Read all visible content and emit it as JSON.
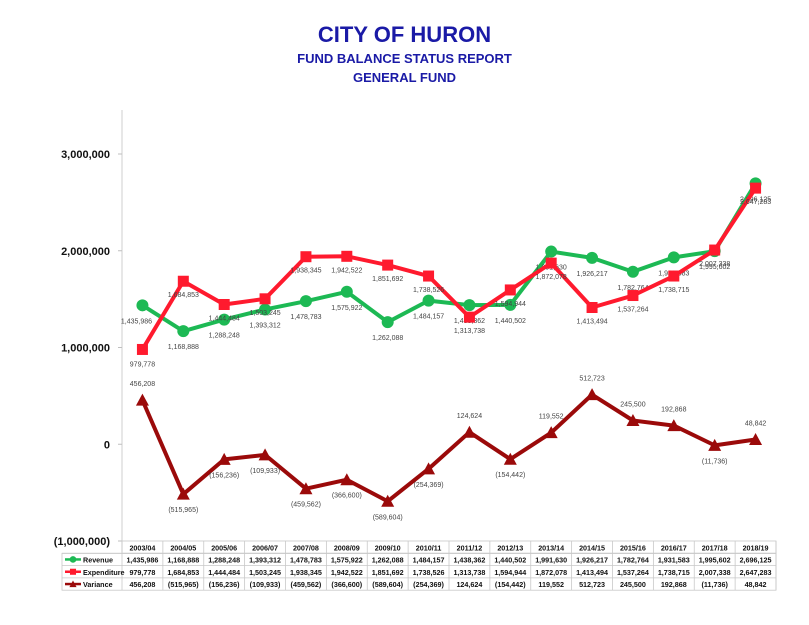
{
  "header": {
    "title": "CITY OF HURON",
    "subtitle": "FUND BALANCE STATUS REPORT",
    "subtitle2": "GENERAL FUND"
  },
  "chart_data": {
    "type": "line",
    "categories": [
      "2003/04",
      "2004/05",
      "2005/06",
      "2006/07",
      "2007/08",
      "2008/09",
      "2009/10",
      "2010/11",
      "2011/12",
      "2012/13",
      "2013/14",
      "2014/15",
      "2015/16",
      "2016/17",
      "2017/18",
      "2018/19"
    ],
    "ylim": [
      -1000000,
      3000000
    ],
    "yticks": [
      -1000000,
      0,
      1000000,
      2000000,
      3000000
    ],
    "ytick_labels": [
      "(1,000,000)",
      "0",
      "1,000,000",
      "2,000,000",
      "3,000,000"
    ],
    "grid": false,
    "legend": "bottom data table",
    "series": [
      {
        "name": "Revenue",
        "color": "#1db954",
        "marker": "circle",
        "values": [
          1435986,
          1168888,
          1288248,
          1393312,
          1478783,
          1575922,
          1262088,
          1484157,
          1438362,
          1440502,
          1991630,
          1926217,
          1782764,
          1931583,
          1995602,
          2696125
        ],
        "labels": [
          "1,435,986",
          "1,168,888",
          "1,288,248",
          "1,393,312",
          "1,478,783",
          "1,575,922",
          "1,262,088",
          "1,484,157",
          "1,438,362",
          "1,440,502",
          "1,991,630",
          "1,926,217",
          "1,782,764",
          "1,931,583",
          "1,995,602",
          "2,696,125"
        ],
        "table_labels": [
          "1,435,986",
          "1,168,888",
          "1,288,248",
          "1,393,312",
          "1,478,783",
          "1,575,922",
          "1,262,088",
          "1,484,157",
          "1,438,362",
          "1,440,502",
          "1,991,630",
          "1,926,217",
          "1,782,764",
          "1,931,583",
          "1,995,602",
          "2,696,125"
        ]
      },
      {
        "name": "Expenditure",
        "color": "#ff1a2e",
        "marker": "square",
        "values": [
          979778,
          1684853,
          1444484,
          1503245,
          1938345,
          1942522,
          1851692,
          1738526,
          1313738,
          1594944,
          1872078,
          1413494,
          1537264,
          1738715,
          2007338,
          2647283
        ],
        "labels": [
          "979,778",
          "1,684,853",
          "1,444,484",
          "1,503,245",
          "1,938,345",
          "1,942,522",
          "1,851,692",
          "1,738,526",
          "1,313,738",
          "1,594,944",
          "1,872,078",
          "1,413,494",
          "1,537,264",
          "1,738,715",
          "2,007,338",
          "2,647,283"
        ],
        "table_labels": [
          "979,778",
          "1,684,853",
          "1,444,484",
          "1,503,245",
          "1,938,345",
          "1,942,522",
          "1,851,692",
          "1,738,526",
          "1,313,738",
          "1,594,944",
          "1,872,078",
          "1,413,494",
          "1,537,264",
          "1,738,715",
          "2,007,338",
          "2,647,283"
        ]
      },
      {
        "name": "Variance",
        "color": "#9b0a0a",
        "marker": "triangle",
        "values": [
          456208,
          -515965,
          -156236,
          -109933,
          -459562,
          -366600,
          -589604,
          -254369,
          124624,
          -154442,
          119552,
          512723,
          245500,
          192868,
          -11736,
          48842
        ],
        "labels": [
          "456,208",
          "(515,965)",
          "(156,236)",
          "(109,933)",
          "(459,562)",
          "(366,600)",
          "(589,604)",
          "(254,369)",
          "124,624",
          "(154,442)",
          "119,552",
          "512,723",
          "245,500",
          "192,868",
          "(11,736)",
          "48,842"
        ],
        "table_labels": [
          "456,208",
          "(515,965)",
          "(156,236)",
          "(109,933)",
          "(459,562)",
          "(366,600)",
          "(589,604)",
          "(254,369)",
          "124,624",
          "(154,442)",
          "119,552",
          "512,723",
          "245,500",
          "192,868",
          "(11,736)",
          "48,842"
        ]
      }
    ]
  }
}
